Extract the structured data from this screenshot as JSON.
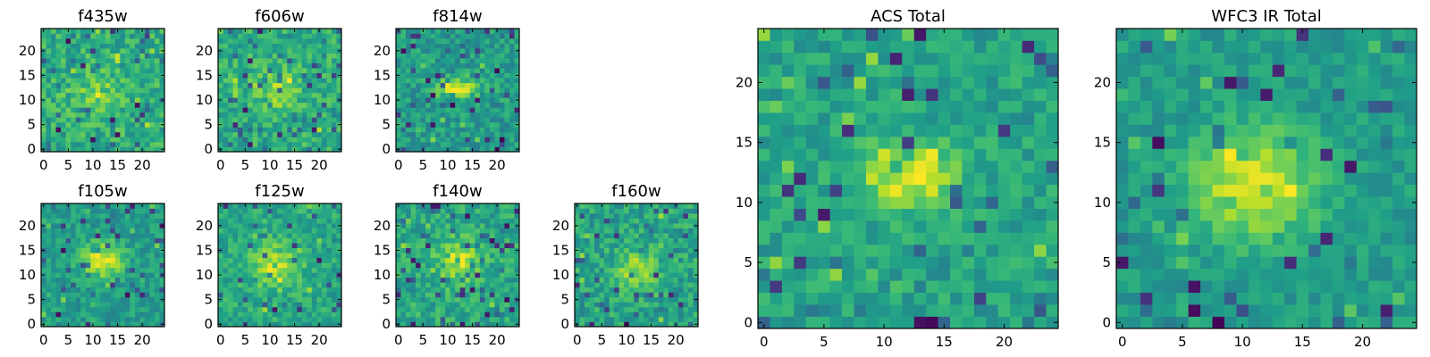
{
  "chart_data": [
    {
      "type": "heatmap",
      "title": "f435w",
      "xticks": [
        "0",
        "5",
        "10",
        "15",
        "20"
      ],
      "yticks": [
        "0",
        "5",
        "10",
        "15",
        "20"
      ],
      "xlim": [
        -0.5,
        24.5
      ],
      "ylim": [
        -0.5,
        24.5
      ],
      "grid_size": 25,
      "colormap": "viridis",
      "structure": {
        "peak_center": [
          11,
          11.5
        ],
        "peak_spread": [
          3.5,
          3.0
        ],
        "peak_strength": 0.15,
        "noise": 0.3,
        "base": 0.62,
        "seed": 11
      }
    },
    {
      "type": "heatmap",
      "title": "f606w",
      "xticks": [
        "0",
        "5",
        "10",
        "15",
        "20"
      ],
      "yticks": [
        "0",
        "5",
        "10",
        "15",
        "20"
      ],
      "xlim": [
        -0.5,
        24.5
      ],
      "ylim": [
        -0.5,
        24.5
      ],
      "grid_size": 25,
      "colormap": "viridis",
      "structure": {
        "peak_center": [
          11,
          12
        ],
        "peak_spread": [
          3.5,
          3.0
        ],
        "peak_strength": 0.2,
        "noise": 0.28,
        "base": 0.62,
        "seed": 23
      }
    },
    {
      "type": "heatmap",
      "title": "f814w",
      "xticks": [
        "0",
        "5",
        "10",
        "15",
        "20"
      ],
      "yticks": [
        "0",
        "5",
        "10",
        "15",
        "20"
      ],
      "xlim": [
        -0.5,
        24.5
      ],
      "ylim": [
        -0.5,
        24.5
      ],
      "grid_size": 25,
      "colormap": "viridis",
      "structure": {
        "peak_center": [
          12,
          12.5
        ],
        "peak_spread": [
          3.0,
          1.3
        ],
        "peak_strength": 0.45,
        "noise": 0.26,
        "base": 0.55,
        "seed": 37
      }
    },
    {
      "type": "heatmap",
      "title": "f105w",
      "xticks": [
        "0",
        "5",
        "10",
        "15",
        "20"
      ],
      "yticks": [
        "0",
        "5",
        "10",
        "15",
        "20"
      ],
      "xlim": [
        -0.5,
        24.5
      ],
      "ylim": [
        -0.5,
        24.5
      ],
      "grid_size": 25,
      "colormap": "viridis",
      "structure": {
        "peak_center": [
          12,
          13
        ],
        "peak_spread": [
          3.0,
          2.5
        ],
        "peak_strength": 0.4,
        "noise": 0.22,
        "base": 0.55,
        "seed": 41
      }
    },
    {
      "type": "heatmap",
      "title": "f125w",
      "xticks": [
        "0",
        "5",
        "10",
        "15",
        "20"
      ],
      "yticks": [
        "0",
        "5",
        "10",
        "15",
        "20"
      ],
      "xlim": [
        -0.5,
        24.5
      ],
      "ylim": [
        -0.5,
        24.5
      ],
      "grid_size": 25,
      "colormap": "viridis",
      "structure": {
        "peak_center": [
          11,
          12
        ],
        "peak_spread": [
          3.5,
          3.0
        ],
        "peak_strength": 0.3,
        "noise": 0.24,
        "base": 0.6,
        "seed": 53
      }
    },
    {
      "type": "heatmap",
      "title": "f140w",
      "xticks": [
        "0",
        "5",
        "10",
        "15",
        "20"
      ],
      "yticks": [
        "0",
        "5",
        "10",
        "15",
        "20"
      ],
      "xlim": [
        -0.5,
        24.5
      ],
      "ylim": [
        -0.5,
        24.5
      ],
      "grid_size": 25,
      "colormap": "viridis",
      "structure": {
        "peak_center": [
          12,
          13
        ],
        "peak_spread": [
          3.0,
          3.0
        ],
        "peak_strength": 0.3,
        "noise": 0.26,
        "base": 0.6,
        "seed": 67
      }
    },
    {
      "type": "heatmap",
      "title": "f160w",
      "xticks": [
        "0",
        "5",
        "10",
        "15",
        "20"
      ],
      "yticks": [
        "0",
        "5",
        "10",
        "15",
        "20"
      ],
      "xlim": [
        -0.5,
        24.5
      ],
      "ylim": [
        -0.5,
        24.5
      ],
      "grid_size": 25,
      "colormap": "viridis",
      "structure": {
        "peak_center": [
          12,
          11
        ],
        "peak_spread": [
          3.0,
          3.0
        ],
        "peak_strength": 0.28,
        "noise": 0.28,
        "base": 0.58,
        "seed": 79
      }
    },
    {
      "type": "heatmap",
      "title": "ACS Total",
      "xticks": [
        "0",
        "5",
        "10",
        "15",
        "20"
      ],
      "yticks": [
        "0",
        "5",
        "10",
        "15",
        "20"
      ],
      "xlim": [
        -0.5,
        24.5
      ],
      "ylim": [
        -0.5,
        24.5
      ],
      "grid_size": 25,
      "colormap": "viridis",
      "structure": {
        "peak_center": [
          12,
          12
        ],
        "peak_spread": [
          3.0,
          1.8
        ],
        "peak_strength": 0.38,
        "noise": 0.22,
        "base": 0.58,
        "seed": 97
      }
    },
    {
      "type": "heatmap",
      "title": "WFC3 IR Total",
      "xticks": [
        "0",
        "5",
        "10",
        "15",
        "20"
      ],
      "yticks": [
        "0",
        "5",
        "10",
        "15",
        "20"
      ],
      "xlim": [
        -0.5,
        24.5
      ],
      "ylim": [
        -0.5,
        24.5
      ],
      "grid_size": 25,
      "colormap": "viridis",
      "structure": {
        "peak_center": [
          11,
          11.5
        ],
        "peak_spread": [
          3.5,
          3.0
        ],
        "peak_strength": 0.42,
        "noise": 0.18,
        "base": 0.55,
        "seed": 113
      }
    }
  ]
}
